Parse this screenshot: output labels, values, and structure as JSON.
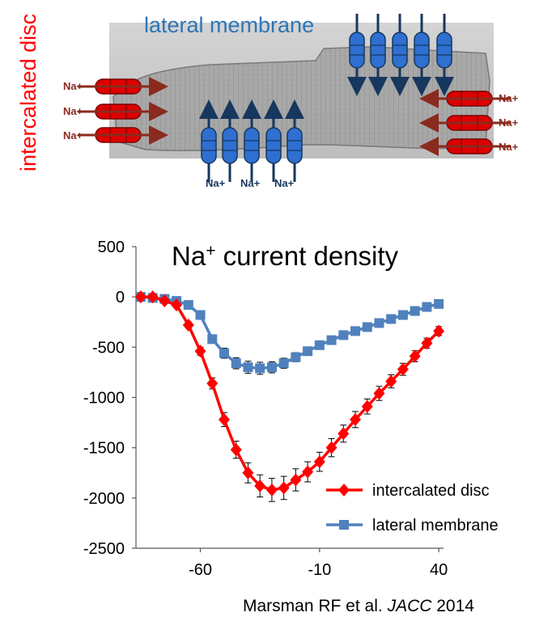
{
  "illustration": {
    "label_top": "lateral membrane",
    "label_left": "intercalated disc",
    "ion_label": "Na+",
    "colors": {
      "intercalated_channel": "#dd0000",
      "intercalated_arrow": "#8b2a1e",
      "lateral_channel": "#2e6fd0",
      "lateral_arrow": "#17375e",
      "label_top": "#2e75b6",
      "label_left": "#ff0000"
    }
  },
  "chart_data": {
    "type": "line",
    "title": "Na+ current density",
    "xlabel": "",
    "ylabel": "",
    "xlim": [
      -87,
      42
    ],
    "ylim": [
      -2500,
      500
    ],
    "xticks": [
      -60,
      -10,
      40
    ],
    "yticks": [
      500,
      0,
      -500,
      -1000,
      -1500,
      -2000,
      -2500
    ],
    "legend_position": "bottom-right",
    "series": [
      {
        "name": "intercalated disc",
        "color": "#ff0000",
        "marker": "diamond",
        "x": [
          -85,
          -80,
          -75,
          -70,
          -65,
          -60,
          -55,
          -50,
          -45,
          -40,
          -35,
          -30,
          -25,
          -20,
          -15,
          -10,
          -5,
          0,
          5,
          10,
          15,
          20,
          25,
          30,
          35,
          40
        ],
        "y": [
          0,
          0,
          -40,
          -80,
          -280,
          -540,
          -860,
          -1220,
          -1520,
          -1750,
          -1880,
          -1920,
          -1900,
          -1820,
          -1740,
          -1640,
          -1500,
          -1360,
          -1220,
          -1090,
          -960,
          -840,
          -720,
          -590,
          -460,
          -340
        ],
        "error": [
          0,
          0,
          10,
          15,
          30,
          40,
          55,
          70,
          85,
          100,
          110,
          115,
          115,
          110,
          100,
          95,
          90,
          85,
          80,
          75,
          70,
          65,
          60,
          55,
          50,
          45
        ]
      },
      {
        "name": "lateral membrane",
        "color": "#4f81bd",
        "marker": "square",
        "x": [
          -85,
          -80,
          -75,
          -70,
          -65,
          -60,
          -55,
          -50,
          -45,
          -40,
          -35,
          -30,
          -25,
          -20,
          -15,
          -10,
          -5,
          0,
          5,
          10,
          15,
          20,
          25,
          30,
          35,
          40
        ],
        "y": [
          0,
          -10,
          -20,
          -40,
          -80,
          -180,
          -420,
          -560,
          -660,
          -700,
          -710,
          -700,
          -660,
          -600,
          -540,
          -480,
          -430,
          -380,
          -340,
          -300,
          -260,
          -220,
          -180,
          -140,
          -100,
          -70
        ],
        "error": [
          0,
          5,
          8,
          10,
          15,
          25,
          40,
          50,
          55,
          60,
          60,
          55,
          50,
          45,
          40,
          35,
          30,
          28,
          25,
          22,
          20,
          18,
          15,
          12,
          10,
          8
        ]
      }
    ]
  },
  "citation": {
    "authors": "Marsman RF et al.",
    "journal": "JACC",
    "year": "2014"
  }
}
